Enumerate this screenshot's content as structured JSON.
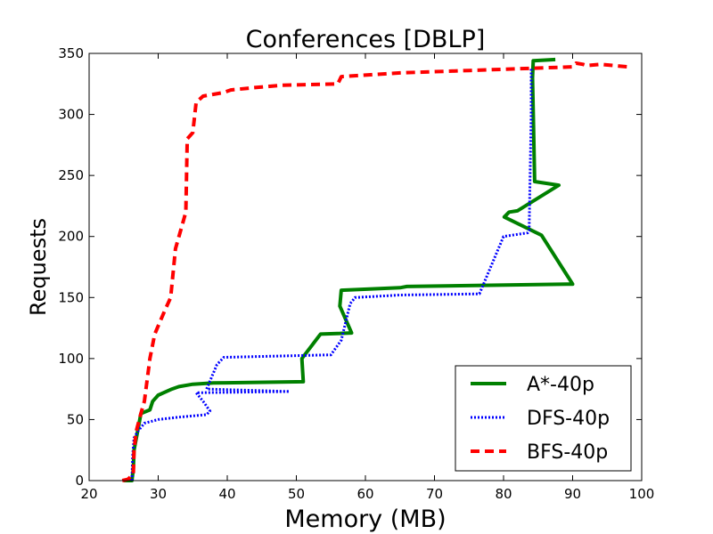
{
  "chart_data": {
    "type": "line",
    "title": "Conferences [DBLP]",
    "xlabel": "Memory (MB)",
    "ylabel": "Requests",
    "xlim": [
      20,
      100
    ],
    "ylim": [
      0,
      350
    ],
    "xticks": [
      20,
      30,
      40,
      50,
      60,
      70,
      80,
      90,
      100
    ],
    "yticks": [
      0,
      50,
      100,
      150,
      200,
      250,
      300,
      350
    ],
    "grid": false,
    "legend_position": "lower-right",
    "series": [
      {
        "name": "A*-40p",
        "color": "#008000",
        "style": "solid",
        "points": [
          [
            25.0,
            0
          ],
          [
            26.2,
            0
          ],
          [
            26.4,
            10
          ],
          [
            26.5,
            25
          ],
          [
            27.0,
            40
          ],
          [
            27.5,
            55
          ],
          [
            28.8,
            58
          ],
          [
            29.2,
            65
          ],
          [
            30.0,
            70
          ],
          [
            32.0,
            75
          ],
          [
            33.0,
            77
          ],
          [
            35.0,
            79
          ],
          [
            38.0,
            80
          ],
          [
            51.0,
            81
          ],
          [
            50.8,
            100
          ],
          [
            53.5,
            120
          ],
          [
            58.0,
            121
          ],
          [
            56.3,
            143
          ],
          [
            56.5,
            156
          ],
          [
            65.0,
            158
          ],
          [
            66.0,
            159
          ],
          [
            90.0,
            161
          ],
          [
            85.5,
            201
          ],
          [
            80.1,
            216
          ],
          [
            80.8,
            220
          ],
          [
            82.0,
            221
          ],
          [
            88.0,
            242
          ],
          [
            84.5,
            245
          ],
          [
            84.2,
            330
          ],
          [
            84.3,
            344
          ],
          [
            87.5,
            345
          ]
        ]
      },
      {
        "name": "DFS-40p",
        "color": "#0000ff",
        "style": "dotted",
        "points": [
          [
            26.2,
            0
          ],
          [
            26.3,
            20
          ],
          [
            26.5,
            35
          ],
          [
            27.0,
            40
          ],
          [
            28.0,
            47
          ],
          [
            30.0,
            50
          ],
          [
            33.0,
            52
          ],
          [
            37.0,
            54
          ],
          [
            37.5,
            57
          ],
          [
            36.5,
            65
          ],
          [
            35.5,
            72
          ],
          [
            49.0,
            73
          ],
          [
            37.0,
            75
          ],
          [
            38.5,
            95
          ],
          [
            39.5,
            101
          ],
          [
            55.0,
            103
          ],
          [
            56.5,
            115
          ],
          [
            57.8,
            145
          ],
          [
            58.5,
            150
          ],
          [
            65.0,
            152
          ],
          [
            76.5,
            153
          ],
          [
            80.0,
            200
          ],
          [
            83.5,
            203
          ],
          [
            83.7,
            205
          ],
          [
            84.0,
            300
          ],
          [
            84.0,
            338
          ]
        ]
      },
      {
        "name": "BFS-40p",
        "color": "#ff0000",
        "style": "dashed",
        "points": [
          [
            24.8,
            0
          ],
          [
            25.6,
            1
          ],
          [
            26.4,
            5
          ],
          [
            26.5,
            25
          ],
          [
            26.8,
            40
          ],
          [
            27.5,
            55
          ],
          [
            28.0,
            65
          ],
          [
            28.8,
            100
          ],
          [
            29.5,
            120
          ],
          [
            31.0,
            140
          ],
          [
            31.8,
            150
          ],
          [
            32.5,
            190
          ],
          [
            33.0,
            200
          ],
          [
            34.0,
            220
          ],
          [
            34.2,
            280
          ],
          [
            35.0,
            285
          ],
          [
            35.5,
            310
          ],
          [
            36.5,
            315
          ],
          [
            39.5,
            318
          ],
          [
            40.5,
            320
          ],
          [
            44.0,
            322
          ],
          [
            48.0,
            324
          ],
          [
            56.0,
            325
          ],
          [
            56.5,
            331
          ],
          [
            65.0,
            334
          ],
          [
            75.0,
            336
          ],
          [
            90.0,
            339
          ],
          [
            90.5,
            342
          ],
          [
            91.5,
            341
          ],
          [
            92.0,
            340
          ],
          [
            94.0,
            341
          ],
          [
            96.0,
            340
          ],
          [
            98.0,
            339
          ]
        ]
      }
    ]
  }
}
